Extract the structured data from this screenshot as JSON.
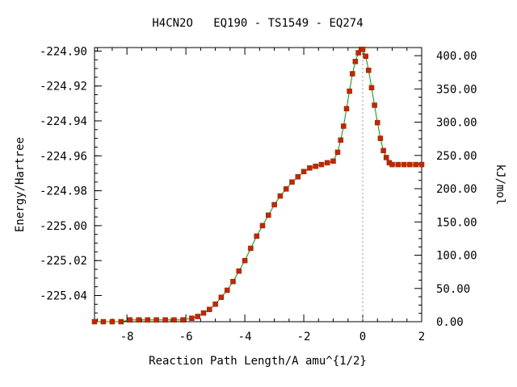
{
  "chart_data": {
    "type": "line",
    "title": "H4CN2O   EQ190 - TS1549 - EQ274",
    "xlabel": "Reaction Path Length/A amu^{1/2}",
    "ylabel": "Energy/Hartree",
    "y2label": "kJ/mol",
    "xlim": [
      -9.1,
      2.0
    ],
    "ylim": [
      -225.055,
      -224.898
    ],
    "y2lim": [
      0.0,
      412.2
    ],
    "x_ticks": [
      -8,
      -6,
      -4,
      -2,
      0,
      2
    ],
    "x_tick_labels": [
      "-8",
      "-6",
      "-4",
      "-2",
      "0",
      "2"
    ],
    "y_ticks": [
      -224.9,
      -224.92,
      -224.94,
      -224.96,
      -224.98,
      -225.0,
      -225.02,
      -225.04
    ],
    "y_tick_labels": [
      "-224.90",
      "-224.92",
      "-224.94",
      "-224.96",
      "-224.98",
      "-225.00",
      "-225.02",
      "-225.04"
    ],
    "y2_ticks": [
      400,
      350,
      300,
      250,
      200,
      150,
      100,
      50,
      0
    ],
    "y2_tick_labels": [
      "400.00",
      "350.00",
      "300.00",
      "250.00",
      "200.00",
      "150.00",
      "100.00",
      "50.00",
      "0.00"
    ],
    "ts_x": 0,
    "grid": false,
    "colors": {
      "line": "#00a000",
      "marker": "#cc2200",
      "ts_line": "#999999"
    },
    "series": [
      {
        "x": [
          -9.1,
          -8.8,
          -8.5,
          -8.2,
          -7.9,
          -7.6,
          -7.3,
          -7.0,
          -6.7,
          -6.4,
          -6.1,
          -5.8,
          -5.6,
          -5.4,
          -5.2,
          -5.0,
          -4.8,
          -4.6,
          -4.4,
          -4.2,
          -4.0,
          -3.8,
          -3.6,
          -3.4,
          -3.2,
          -3.0,
          -2.8,
          -2.6,
          -2.4,
          -2.2,
          -2.0,
          -1.8,
          -1.6,
          -1.4,
          -1.2,
          -1.0,
          -0.85,
          -0.75,
          -0.65,
          -0.55,
          -0.45,
          -0.35,
          -0.25,
          -0.15,
          -0.05,
          0.0,
          0.1,
          0.2,
          0.3,
          0.4,
          0.5,
          0.6,
          0.7,
          0.8,
          0.9,
          1.0,
          1.2,
          1.4,
          1.6,
          1.8,
          2.0
        ],
        "y": [
          -225.055,
          -225.055,
          -225.055,
          -225.055,
          -225.054,
          -225.054,
          -225.054,
          -225.054,
          -225.054,
          -225.054,
          -225.054,
          -225.053,
          -225.052,
          -225.05,
          -225.048,
          -225.045,
          -225.041,
          -225.037,
          -225.032,
          -225.026,
          -225.02,
          -225.013,
          -225.006,
          -225.0,
          -224.994,
          -224.988,
          -224.983,
          -224.979,
          -224.975,
          -224.972,
          -224.969,
          -224.967,
          -224.966,
          -224.965,
          -224.964,
          -224.963,
          -224.958,
          -224.951,
          -224.943,
          -224.933,
          -224.923,
          -224.913,
          -224.906,
          -224.901,
          -224.899,
          -224.899,
          -224.903,
          -224.911,
          -224.921,
          -224.931,
          -224.941,
          -224.95,
          -224.957,
          -224.961,
          -224.964,
          -224.965,
          -224.965,
          -224.965,
          -224.965,
          -224.965,
          -224.965
        ]
      }
    ]
  }
}
